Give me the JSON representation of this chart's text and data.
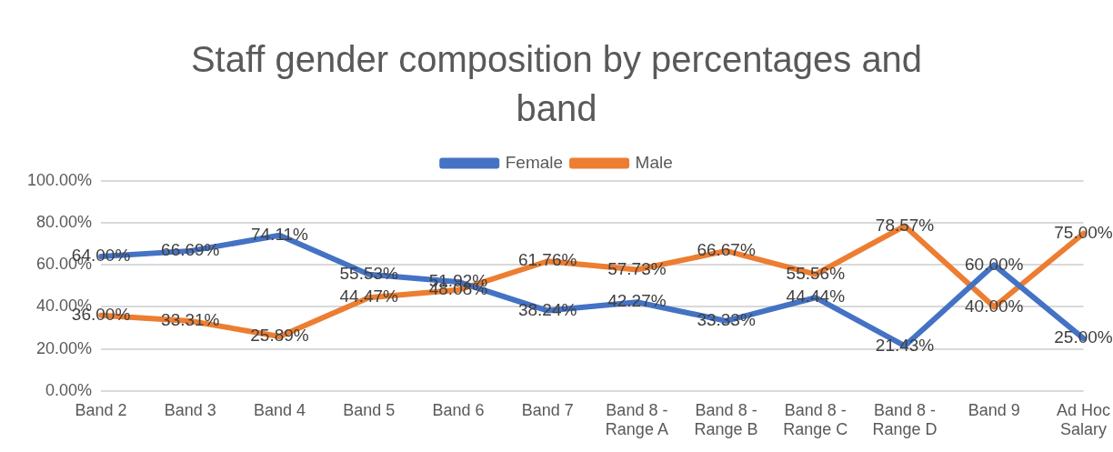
{
  "chart_data": {
    "type": "line",
    "title": "Staff gender composition by percentages and band",
    "categories": [
      "Band 2",
      "Band 3",
      "Band 4",
      "Band 5",
      "Band 6",
      "Band 7",
      "Band 8 - Range A",
      "Band 8 - Range B",
      "Band 8 - Range C",
      "Band 8 - Range D",
      "Band 9",
      "Ad Hoc Salary"
    ],
    "series": [
      {
        "name": "Female",
        "color": "#4472c4",
        "values": [
          64.0,
          66.69,
          74.11,
          55.53,
          51.92,
          38.24,
          42.27,
          33.33,
          44.44,
          21.43,
          60.0,
          25.0
        ],
        "value_labels": [
          "64.00%",
          "66.69%",
          "74.11%",
          "55.53%",
          "51.92%",
          "38.24%",
          "42.27%",
          "33.33%",
          "44.44%",
          "21.43%",
          "60.00%",
          "25.00%"
        ]
      },
      {
        "name": "Male",
        "color": "#ed7d31",
        "values": [
          36.0,
          33.31,
          25.89,
          44.47,
          48.08,
          61.76,
          57.73,
          66.67,
          55.56,
          78.57,
          40.0,
          75.0
        ],
        "value_labels": [
          "36.00%",
          "33.31%",
          "25.89%",
          "44.47%",
          "48.08%",
          "61.76%",
          "57.73%",
          "66.67%",
          "55.56%",
          "78.57%",
          "40.00%",
          "75.00%"
        ]
      }
    ],
    "ylim": [
      0,
      100
    ],
    "yticks": [
      {
        "value": 0,
        "label": "0.00%"
      },
      {
        "value": 20,
        "label": "20.00%"
      },
      {
        "value": 40,
        "label": "40.00%"
      },
      {
        "value": 60,
        "label": "60.00%"
      },
      {
        "value": 80,
        "label": "80.00%"
      },
      {
        "value": 100,
        "label": "100.00%"
      }
    ],
    "grid": "y",
    "legend": "top",
    "marker": "none",
    "line_style": "solid"
  }
}
